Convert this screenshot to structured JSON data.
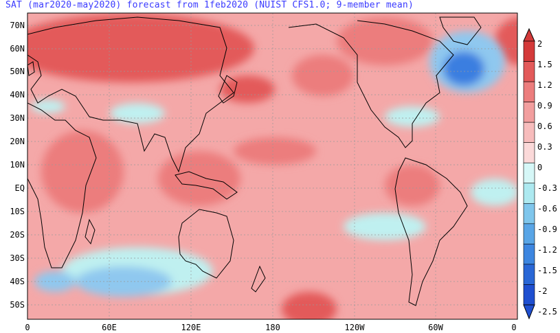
{
  "title": "SAT (mar2020-may2020) forecast from 1feb2020 (NUIST CFS1.0; 9-member mean)",
  "map": {
    "lat_labels": [
      "70N",
      "60N",
      "50N",
      "40N",
      "30N",
      "20N",
      "10N",
      "EQ",
      "10S",
      "20S",
      "30S",
      "40S",
      "50S"
    ],
    "lon_labels": [
      "0",
      "60E",
      "120E",
      "180",
      "120W",
      "60W",
      "0"
    ],
    "colors": {
      "ocean_base": "#f4a8a8",
      "warm_strong": "#e05050",
      "cool_light": "#bff0f0",
      "cool_mid": "#8fc8ef",
      "cool_strong": "#3b7ee0",
      "coast": "#000000"
    }
  },
  "colorbar": {
    "labels": [
      "2",
      "1.5",
      "1.2",
      "0.9",
      "0.6",
      "0.3",
      "0",
      "-0.3",
      "-0.6",
      "-0.9",
      "-1.2",
      "-1.5",
      "-2",
      "-2.5"
    ],
    "colors": [
      "#d43a3a",
      "#e35a5a",
      "#ec7d7d",
      "#f29e9e",
      "#f7bcbc",
      "#fbd9d9",
      "#ffffff",
      "#d6f7f7",
      "#ade9f0",
      "#7fc6ec",
      "#59a5e6",
      "#3d86e0",
      "#2a67d6",
      "#1f4fd0"
    ]
  }
}
